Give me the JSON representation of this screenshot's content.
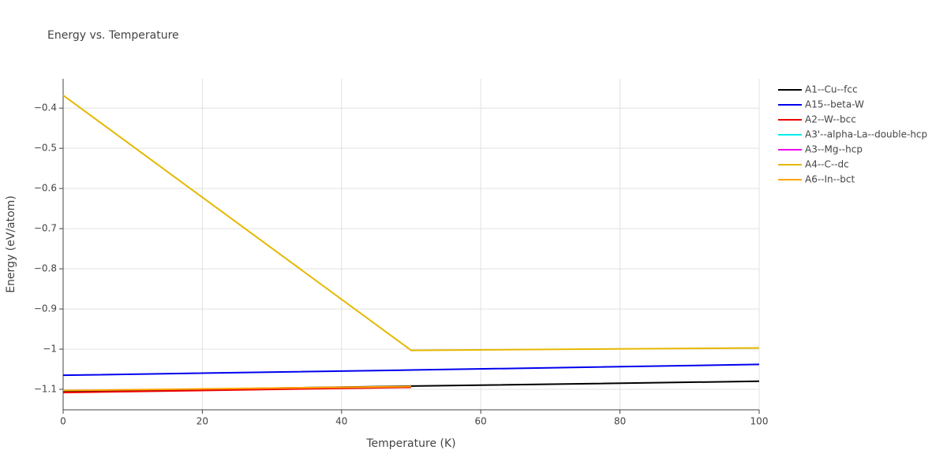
{
  "chart_data": {
    "type": "line",
    "title": "Energy vs. Temperature",
    "x_label": "Temperature (K)",
    "y_label": "Energy (eV/atom)",
    "xlim": [
      0,
      100
    ],
    "xticks": [
      0,
      20,
      40,
      60,
      80,
      100
    ],
    "ylim": [
      -1.151,
      -0.327
    ],
    "yticks": [
      {
        "value": -1.1,
        "label": "−1.1"
      },
      {
        "value": -1,
        "label": "−1"
      },
      {
        "value": -0.9,
        "label": "−0.9"
      },
      {
        "value": -0.8,
        "label": "−0.8"
      },
      {
        "value": -0.7,
        "label": "−0.7"
      },
      {
        "value": -0.6,
        "label": "−0.6"
      },
      {
        "value": -0.5,
        "label": "−0.5"
      },
      {
        "value": -0.4,
        "label": "−0.4"
      }
    ],
    "grid": true,
    "series": [
      {
        "name": "A1--Cu--fcc",
        "color": "#000000",
        "x": [
          0,
          50,
          100
        ],
        "values": [
          -1.105,
          -1.092,
          -1.08
        ]
      },
      {
        "name": "A15--beta-W",
        "color": "#0000ee",
        "x": [
          0,
          50,
          100
        ],
        "values": [
          -1.065,
          -1.052,
          -1.038
        ]
      },
      {
        "name": "A2--W--bcc",
        "color": "#ee0000",
        "x": [
          0,
          50
        ],
        "values": [
          -1.108,
          -1.095
        ]
      },
      {
        "name": "A3'--alpha-La--double-hcp",
        "color": "#00eeee",
        "x": [],
        "values": []
      },
      {
        "name": "A3--Mg--hcp",
        "color": "#ee00ee",
        "x": [],
        "values": []
      },
      {
        "name": "A4--C--dc",
        "color": "#e6b800",
        "x": [
          0,
          50,
          100
        ],
        "values": [
          -0.368,
          -1.003,
          -0.997
        ]
      },
      {
        "name": "A6--In--bct",
        "color": "#ffa500",
        "x": [
          0,
          50
        ],
        "values": [
          -1.103,
          -1.093
        ]
      }
    ]
  }
}
